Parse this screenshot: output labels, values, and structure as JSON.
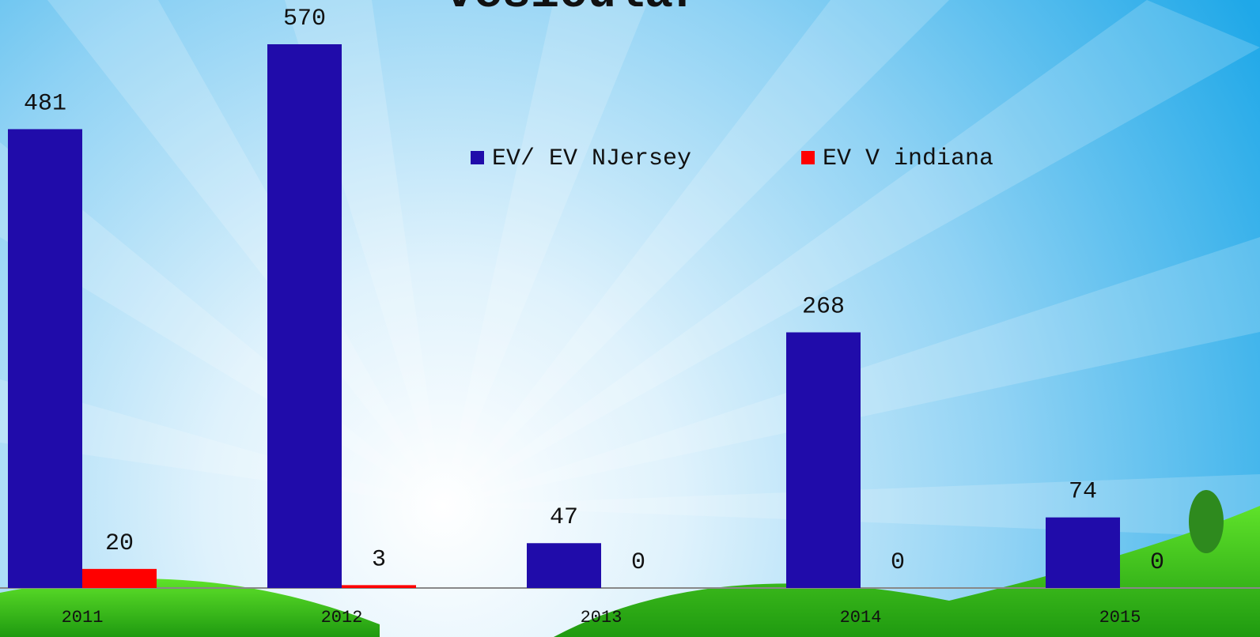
{
  "chart_data": {
    "type": "bar",
    "title": "vesicular",
    "categories": [
      "2011",
      "2012",
      "2013",
      "2014",
      "2015"
    ],
    "series": [
      {
        "name": "EV/ EV NJersey",
        "color": "#200caa",
        "values": [
          481,
          570,
          47,
          268,
          74
        ]
      },
      {
        "name": "EV V indiana",
        "color": "#ff0000",
        "values": [
          20,
          3,
          0,
          0,
          0
        ]
      }
    ]
  }
}
